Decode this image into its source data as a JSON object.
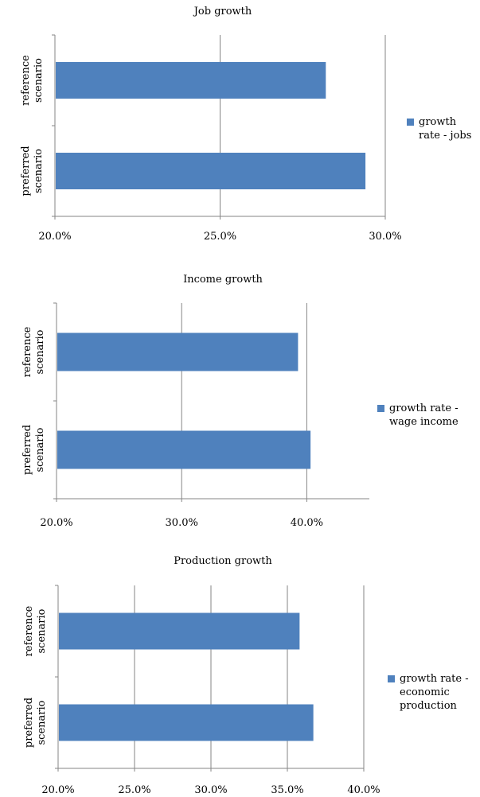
{
  "chart_data": [
    {
      "type": "bar",
      "orientation": "horizontal",
      "title": "Job growth",
      "categories": [
        "reference scenario",
        "preferred scenario"
      ],
      "series": [
        {
          "name": "growth rate - jobs",
          "values": [
            28.2,
            29.4
          ],
          "color": "#4f81bd"
        }
      ],
      "xlim": [
        20,
        30
      ],
      "ticks": [
        "20.0%",
        "25.0%",
        "30.0%"
      ],
      "tick_values": [
        20,
        25,
        30
      ],
      "grid": true,
      "legend": "right"
    },
    {
      "type": "bar",
      "orientation": "horizontal",
      "title": "Income growth",
      "categories": [
        "reference scenario",
        "preferred scenario"
      ],
      "series": [
        {
          "name": "growth rate - wage income",
          "values": [
            39.3,
            40.3
          ],
          "color": "#4f81bd"
        }
      ],
      "xlim": [
        20,
        45
      ],
      "ticks": [
        "20.0%",
        "30.0%",
        "40.0%"
      ],
      "tick_values": [
        20,
        30,
        40
      ],
      "grid": true,
      "legend": "right"
    },
    {
      "type": "bar",
      "orientation": "horizontal",
      "title": "Production growth",
      "categories": [
        "reference scenario",
        "preferred scenario"
      ],
      "series": [
        {
          "name": "growth rate - economic production",
          "values": [
            35.8,
            36.7
          ],
          "color": "#4f81bd"
        }
      ],
      "xlim": [
        20,
        40
      ],
      "ticks": [
        "20.0%",
        "25.0%",
        "30.0%",
        "35.0%",
        "40.0%"
      ],
      "tick_values": [
        20,
        25,
        30,
        35,
        40
      ],
      "grid": true,
      "legend": "right"
    }
  ],
  "legends": [
    [
      "growth",
      "rate - jobs"
    ],
    [
      "growth rate -",
      "wage income"
    ],
    [
      "growth rate -",
      "economic",
      "production"
    ]
  ]
}
